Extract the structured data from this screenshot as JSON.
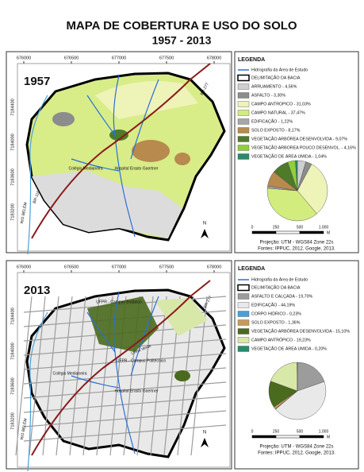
{
  "title": "MAPA DE COBERTURA E USO DO SOLO",
  "subtitle": "1957 - 2013",
  "panels": [
    {
      "year": "1957",
      "x_ticks": [
        676000,
        676500,
        677000,
        677500,
        678000
      ],
      "y_ticks": [
        7184400,
        7184000,
        7183600,
        7183200
      ],
      "map_labels": [
        "Colégio Medianeira",
        "Hospital Erasto Gaertner",
        "BR-277",
        "RIO BELÉM",
        "BR-116"
      ],
      "north": "N",
      "legend": {
        "title": "LEGENDA",
        "hydrography": "Hidrografia da Área de Estudo",
        "boundary": "DELIMITAÇÃO DA BACIA",
        "classes": [
          {
            "label": "ARRUAMENTO - 4,56%",
            "value": 4.56,
            "color": "#cfcfcf"
          },
          {
            "label": "ASFALTO - 3,30%",
            "value": 3.3,
            "color": "#8c8c8c"
          },
          {
            "label": "CAMPO ANTROPICO - 31,03%",
            "value": 31.03,
            "color": "#eef3b8"
          },
          {
            "label": "CAMPO NATURAL - 37,47%",
            "value": 37.47,
            "color": "#d2ec7e"
          },
          {
            "label": "EDIFICAÇÃO - 1,22%",
            "value": 1.22,
            "color": "#a6a6a6"
          },
          {
            "label": "SOLO EXPOSTO - 8,17%",
            "value": 8.17,
            "color": "#b88a4e"
          },
          {
            "label": "VEGETAÇÃO ARBÓREA DESENVOLVIDA - 9,07%",
            "value": 9.07,
            "color": "#4e7a2a"
          },
          {
            "label": "VEGETAÇÃO ARBOREA POUCO DESENVOL. - 4,16%",
            "value": 4.16,
            "color": "#8fcf3c"
          },
          {
            "label": "VEGETAÇÃO DE ÁREA UMIDA - 1,04%",
            "value": 1.04,
            "color": "#2a8a6a"
          }
        ]
      },
      "scale": {
        "ticks": [
          "0",
          "250",
          "500",
          "1.000"
        ],
        "unit": "M"
      },
      "projection": "Projeção: UTM - WGS84 Zone 22s",
      "sources": "Fontes: IPPUC, 2012. Google, 2013."
    },
    {
      "year": "2013",
      "x_ticks": [
        676000,
        676500,
        677000,
        677500,
        678000
      ],
      "y_ticks": [
        7184400,
        7184000,
        7183600,
        7183200
      ],
      "map_labels": [
        "UFPR - Campus Botânico",
        "UFPR - Campus Politécnico",
        "Colégio Medianeira",
        "Hospital Erasto Gaertner",
        "Linha Verde",
        "BR-277",
        "RIO BELÉM"
      ],
      "north": "N",
      "legend": {
        "title": "LEGENDA",
        "hydrography": "Hidrografia da Área de Estudo",
        "boundary": "DELIMITAÇÃO DA BACIA",
        "classes": [
          {
            "label": "ASFALTO E CALÇADA - 19,70%",
            "value": 19.7,
            "color": "#9c9c9c"
          },
          {
            "label": "EDIFICAÇÃO - 44,19%",
            "value": 44.19,
            "color": "#e9e9e9"
          },
          {
            "label": "CORPO HIDRICO - 0,23%",
            "value": 0.23,
            "color": "#4aa0d8"
          },
          {
            "label": "SOLO EXPOSTO - 1,36%",
            "value": 1.36,
            "color": "#c89a5a"
          },
          {
            "label": "VEGETAÇÃO ARBÓREA DESENVOLVIDA - 15,10%",
            "value": 15.1,
            "color": "#4a6a1e"
          },
          {
            "label": "CAMPO ANTRÓPICO - 19,23%",
            "value": 19.23,
            "color": "#d8e8a8"
          },
          {
            "label": "VEGETAÇÃO DE ÁREA UMIDA - 0,20%",
            "value": 0.2,
            "color": "#2a8a6a"
          }
        ]
      },
      "scale": {
        "ticks": [
          "0",
          "250",
          "500",
          "1.000"
        ],
        "unit": "M"
      },
      "projection": "Projeção: UTM - WGS84 Zone 22s",
      "sources": "Fontes: IPPUC, 2012. Google, 2013."
    }
  ]
}
